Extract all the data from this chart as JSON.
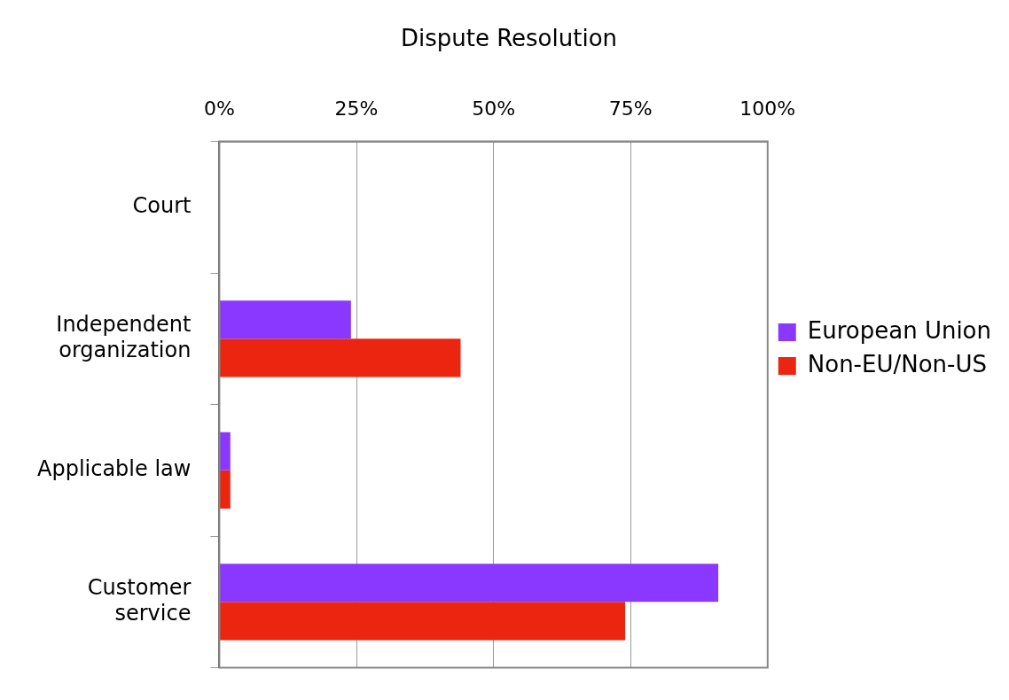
{
  "chart_data": {
    "type": "bar",
    "orientation": "horizontal",
    "title": "Dispute Resolution",
    "categories": [
      "Court",
      "Independent organization",
      "Applicable law",
      "Customer service"
    ],
    "series": [
      {
        "name": "European Union",
        "color": "#8a38ff",
        "values": [
          0,
          24,
          2,
          91
        ]
      },
      {
        "name": "Non-EU/Non-US",
        "color": "#ec2510",
        "values": [
          0,
          44,
          2,
          74
        ]
      }
    ],
    "xlim": [
      0,
      100
    ],
    "xticks": [
      {
        "value": 0,
        "label": "0%"
      },
      {
        "value": 25,
        "label": "25%"
      },
      {
        "value": 50,
        "label": "50%"
      },
      {
        "value": 75,
        "label": "75%"
      },
      {
        "value": 100,
        "label": "100%"
      }
    ],
    "grid": "x",
    "legend": "right"
  }
}
